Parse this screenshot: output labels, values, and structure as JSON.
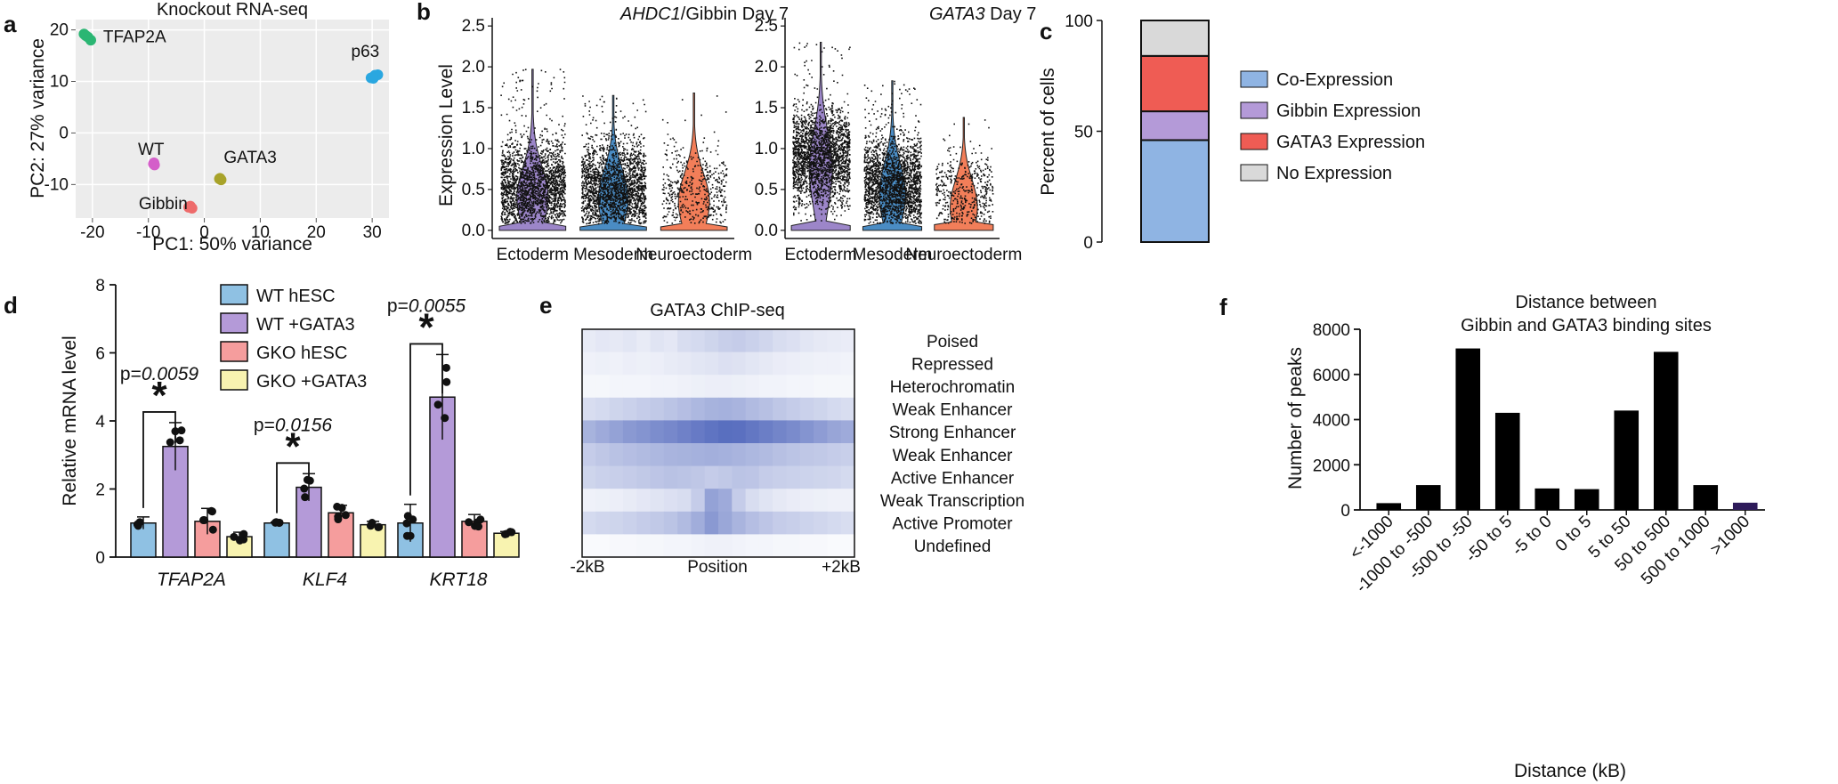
{
  "panels": {
    "a": {
      "label": "a",
      "chart_data": {
        "type": "scatter",
        "title": "Knockout RNA-seq",
        "xlabel": "PC1: 50% variance",
        "ylabel": "PC2: 27% variance",
        "xlim": [
          -23,
          33
        ],
        "ylim": [
          -16.5,
          22
        ],
        "xticks": [
          -20,
          -10,
          0,
          10,
          20,
          30
        ],
        "yticks": [
          -10,
          0,
          10,
          20
        ],
        "xtick_labels": [
          "-20",
          "-10",
          "0",
          "10",
          "20",
          "30"
        ],
        "ytick_labels": [
          "-10",
          "0",
          "10",
          "20"
        ],
        "series": [
          {
            "name": "TFAP2A",
            "color": "#2bb673",
            "points": [
              [
                -21.5,
                19.2
              ],
              [
                -20.8,
                18.6
              ],
              [
                -20.3,
                18.0
              ],
              [
                -21.2,
                18.9
              ]
            ]
          },
          {
            "name": "p63",
            "color": "#2aa7e0",
            "points": [
              [
                29.8,
                10.7
              ],
              [
                30.5,
                11.2
              ],
              [
                31.0,
                11.3
              ],
              [
                30.2,
                10.6
              ]
            ]
          },
          {
            "name": "WT",
            "color": "#d45fc9",
            "points": [
              [
                -9.0,
                -5.8
              ],
              [
                -8.9,
                -6.2
              ],
              [
                -9.1,
                -6.0
              ]
            ]
          },
          {
            "name": "GATA3",
            "color": "#a8a32a",
            "points": [
              [
                2.8,
                -8.8
              ],
              [
                3.0,
                -9.1
              ],
              [
                2.7,
                -8.9
              ]
            ]
          },
          {
            "name": "Gibbin",
            "color": "#ee6b6b",
            "points": [
              [
                -2.5,
                -14.2
              ],
              [
                -2.2,
                -14.6
              ],
              [
                -2.8,
                -14.4
              ]
            ]
          }
        ]
      }
    },
    "b": {
      "label": "b",
      "chart_data": [
        {
          "type": "violin",
          "title_gene": "AHDC1",
          "title_rest": "/Gibbin Day 7",
          "ylabel": "Expression Level",
          "ylim": [
            -0.1,
            2.6
          ],
          "yticks": [
            0.0,
            0.5,
            1.0,
            1.5,
            2.0,
            2.5
          ],
          "ytick_labels": [
            "0.0",
            "0.5",
            "1.0",
            "1.5",
            "2.0",
            "2.5"
          ],
          "categories": [
            "Ectoderm",
            "Mesoderm",
            "Neuroectoderm"
          ],
          "colors": [
            "#9c86c9",
            "#4a8cc4",
            "#f27e59"
          ],
          "max_values": [
            1.97,
            1.65,
            1.68
          ],
          "typical_values": [
            0.5,
            0.5,
            0.45
          ]
        },
        {
          "type": "violin",
          "title_gene": "GATA3",
          "title_rest": " Day 7",
          "ylabel": "",
          "ylim": [
            -0.1,
            2.6
          ],
          "yticks": [
            0.0,
            0.5,
            1.0,
            1.5,
            2.0,
            2.5
          ],
          "ytick_labels": [
            "0.0",
            "0.5",
            "1.0",
            "1.5",
            "2.0",
            "2.5"
          ],
          "categories": [
            "Ectoderm",
            "Mesoderm",
            "Neuroectoderm"
          ],
          "colors": [
            "#9c86c9",
            "#4a8cc4",
            "#f27e59"
          ],
          "max_values": [
            2.3,
            1.83,
            1.38
          ],
          "typical_values": [
            0.9,
            0.55,
            0.4
          ]
        }
      ]
    },
    "c": {
      "label": "c",
      "chart_data": {
        "type": "stacked_bar",
        "ylabel": "Percent of cells",
        "ylim": [
          0,
          100
        ],
        "yticks": [
          0,
          50,
          100
        ],
        "ytick_labels": [
          "0",
          "50",
          "100"
        ],
        "segments": [
          {
            "name": "Co-Expression",
            "value": 46,
            "color": "#8fb4e3"
          },
          {
            "name": "Gibbin Expression",
            "value": 13,
            "color": "#b49ad8"
          },
          {
            "name": "GATA3 Expression",
            "value": 25,
            "color": "#ef5c54"
          },
          {
            "name": "No Expression",
            "value": 16,
            "color": "#d9d9d9"
          }
        ]
      }
    },
    "d": {
      "label": "d",
      "chart_data": {
        "type": "bar",
        "ylabel": "Relative mRNA level",
        "ylim": [
          0,
          8
        ],
        "yticks": [
          0,
          2,
          4,
          6,
          8
        ],
        "ytick_labels": [
          "0",
          "2",
          "4",
          "6",
          "8"
        ],
        "categories": [
          "TFAP2A",
          "KLF4",
          "KRT18"
        ],
        "series": [
          {
            "name": "WT hESC",
            "color": "#8fc1e3",
            "values": [
              1.0,
              1.0,
              1.0
            ],
            "errors": [
              0.18,
              0.03,
              0.55
            ]
          },
          {
            "name": "WT +GATA3",
            "color": "#b49ad8",
            "values": [
              3.25,
              2.05,
              4.7
            ],
            "errors": [
              0.7,
              0.4,
              1.25
            ]
          },
          {
            "name": "GKO hESC",
            "color": "#f59d9d",
            "values": [
              1.05,
              1.3,
              1.05
            ],
            "errors": [
              0.38,
              0.22,
              0.2
            ]
          },
          {
            "name": "GKO +GATA3",
            "color": "#f8f3b0",
            "values": [
              0.6,
              0.95,
              0.7
            ],
            "errors": [
              0.13,
              0.1,
              0.05
            ]
          }
        ],
        "annotations": [
          {
            "category": "TFAP2A",
            "p_prefix": "p=",
            "p_value": "0.0059",
            "star": "*"
          },
          {
            "category": "KLF4",
            "p_prefix": "p=",
            "p_value": "0.0156",
            "star": "*"
          },
          {
            "category": "KRT18",
            "p_prefix": "p=",
            "p_value": "0.0055",
            "star": "*"
          }
        ]
      }
    },
    "e": {
      "label": "e",
      "chart_data": {
        "type": "heatmap",
        "title": "GATA3 ChIP-seq",
        "xlabel": "Position",
        "x_left": "-2kB",
        "x_right": "+2kB",
        "rows": [
          "Poised",
          "Repressed",
          "Heterochromatin",
          "Weak Enhancer",
          "Strong Enhancer",
          "Weak Enhancer",
          "Active Enhancer",
          "Weak Transcription",
          "Active Promoter",
          "Undefined"
        ],
        "color_low": "#ffffff",
        "color_high": "#3c55b4",
        "values": [
          [
            0.12,
            0.14,
            0.13,
            0.15,
            0.12,
            0.16,
            0.14,
            0.2,
            0.22,
            0.25,
            0.28,
            0.3,
            0.27,
            0.24,
            0.2,
            0.18,
            0.15,
            0.13,
            0.12,
            0.11
          ],
          [
            0.08,
            0.09,
            0.08,
            0.1,
            0.09,
            0.1,
            0.12,
            0.13,
            0.15,
            0.16,
            0.18,
            0.17,
            0.15,
            0.13,
            0.11,
            0.1,
            0.09,
            0.08,
            0.08,
            0.07
          ],
          [
            0.05,
            0.05,
            0.06,
            0.06,
            0.06,
            0.07,
            0.07,
            0.08,
            0.09,
            0.1,
            0.1,
            0.09,
            0.08,
            0.07,
            0.07,
            0.06,
            0.06,
            0.05,
            0.05,
            0.05
          ],
          [
            0.2,
            0.22,
            0.25,
            0.27,
            0.3,
            0.32,
            0.35,
            0.38,
            0.42,
            0.45,
            0.46,
            0.44,
            0.4,
            0.37,
            0.33,
            0.3,
            0.27,
            0.25,
            0.22,
            0.2
          ],
          [
            0.45,
            0.5,
            0.55,
            0.6,
            0.63,
            0.67,
            0.7,
            0.74,
            0.78,
            0.82,
            0.85,
            0.84,
            0.8,
            0.76,
            0.72,
            0.68,
            0.63,
            0.58,
            0.53,
            0.5
          ],
          [
            0.3,
            0.33,
            0.36,
            0.38,
            0.4,
            0.42,
            0.44,
            0.45,
            0.46,
            0.47,
            0.46,
            0.44,
            0.42,
            0.4,
            0.37,
            0.35,
            0.33,
            0.32,
            0.3,
            0.28
          ],
          [
            0.25,
            0.27,
            0.28,
            0.3,
            0.32,
            0.34,
            0.36,
            0.35,
            0.33,
            0.3,
            0.32,
            0.35,
            0.34,
            0.3,
            0.28,
            0.27,
            0.26,
            0.25,
            0.24,
            0.22
          ],
          [
            0.08,
            0.09,
            0.1,
            0.12,
            0.14,
            0.16,
            0.18,
            0.2,
            0.3,
            0.55,
            0.5,
            0.3,
            0.2,
            0.16,
            0.13,
            0.11,
            0.1,
            0.09,
            0.08,
            0.08
          ],
          [
            0.22,
            0.24,
            0.25,
            0.27,
            0.3,
            0.32,
            0.35,
            0.4,
            0.48,
            0.6,
            0.52,
            0.44,
            0.38,
            0.34,
            0.3,
            0.28,
            0.26,
            0.24,
            0.22,
            0.2
          ],
          [
            0.03,
            0.03,
            0.04,
            0.04,
            0.05,
            0.05,
            0.06,
            0.06,
            0.07,
            0.08,
            0.08,
            0.07,
            0.06,
            0.06,
            0.05,
            0.05,
            0.04,
            0.04,
            0.03,
            0.03
          ]
        ]
      }
    },
    "f": {
      "label": "f",
      "chart_data": {
        "type": "bar",
        "title_line1": "Distance between",
        "title_line2": "Gibbin and GATA3 binding sites",
        "xlabel": "Distance (kB)",
        "ylabel": "Number of peaks",
        "ylim": [
          0,
          8000
        ],
        "yticks": [
          0,
          2000,
          4000,
          6000,
          8000
        ],
        "ytick_labels": [
          "0",
          "2000",
          "4000",
          "6000",
          "8000"
        ],
        "categories": [
          "<-1000",
          "-1000 to -500",
          "-500 to -50",
          "-50 to 5",
          "-5 to 0",
          "0 to 5",
          "5 to 50",
          "50 to 500",
          "500 to 1000",
          ">1000"
        ],
        "values": [
          300,
          1100,
          7150,
          4300,
          950,
          920,
          4400,
          7000,
          1100,
          320
        ],
        "colors": [
          "#000000",
          "#000000",
          "#000000",
          "#000000",
          "#000000",
          "#000000",
          "#000000",
          "#000000",
          "#000000",
          "#2e1b5a"
        ]
      }
    }
  }
}
